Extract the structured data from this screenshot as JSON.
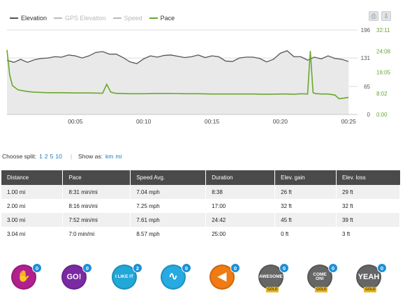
{
  "chart_data": {
    "type": "line",
    "x_label_ticks": [
      "00:05",
      "00:10",
      "00:15",
      "00:20",
      "00:25"
    ],
    "elevation_axis_ticks": [
      "196",
      "131",
      "65",
      "0"
    ],
    "pace_axis_ticks": [
      "32:11",
      "24:08",
      "16:05",
      "8:02",
      "0:00"
    ],
    "legend": [
      {
        "name": "Elevation",
        "state": "on",
        "color": "#555555"
      },
      {
        "name": "GPS Elevation",
        "state": "off",
        "color": "#b9b9b9"
      },
      {
        "name": "Speed",
        "state": "off",
        "color": "#b9b9b9"
      },
      {
        "name": "Pace",
        "state": "on",
        "color": "#6aa72e"
      }
    ],
    "series": [
      {
        "name": "Elevation",
        "color": "#555555",
        "unit": "ft",
        "x_min": [
          0,
          0.5,
          1,
          1.5,
          2,
          2.5,
          3,
          3.5,
          4,
          4.5,
          5,
          5.5,
          6,
          6.5,
          7,
          7.5,
          8,
          8.5,
          9,
          9.5,
          10,
          10.5,
          11,
          11.5,
          12,
          12.5,
          13,
          13.5,
          14,
          14.5,
          15,
          15.5,
          16,
          16.5,
          17,
          17.5,
          18,
          18.5,
          19,
          19.5,
          20,
          20.5,
          21,
          21.5,
          22,
          22.5,
          23,
          23.5,
          24,
          24.5,
          25
        ],
        "values": [
          126,
          121,
          128,
          121,
          127,
          130,
          131,
          134,
          133,
          138,
          136,
          131,
          136,
          144,
          146,
          140,
          140,
          132,
          122,
          118,
          129,
          136,
          133,
          137,
          138,
          135,
          132,
          134,
          138,
          132,
          136,
          134,
          124,
          123,
          131,
          133,
          133,
          130,
          122,
          128,
          142,
          148,
          134,
          134,
          126,
          133,
          129,
          136,
          130,
          128,
          123
        ]
      },
      {
        "name": "Pace",
        "color": "#6aa72e",
        "unit": "min/mi",
        "x_min": [
          0,
          0.2,
          0.4,
          0.8,
          1.2,
          1.6,
          2,
          3,
          4,
          5,
          6,
          7,
          7.3,
          7.6,
          7.9,
          8.3,
          9,
          10,
          11,
          12,
          13,
          14,
          15,
          16,
          17,
          18,
          19,
          20,
          20.5,
          21,
          21.5,
          22,
          22.2,
          22.4,
          22.6,
          22.8,
          23,
          23.5,
          24,
          24.3,
          24.6,
          25
        ],
        "values": [
          24.6,
          15,
          11,
          9.4,
          9,
          8.7,
          8.5,
          8.3,
          8.3,
          8.2,
          8.2,
          8.1,
          11.5,
          8.5,
          8.1,
          8.0,
          7.9,
          7.9,
          8.0,
          8.0,
          7.9,
          7.9,
          7.8,
          7.8,
          7.8,
          7.8,
          7.7,
          7.8,
          7.8,
          7.7,
          7.9,
          7.8,
          24.2,
          8.3,
          7.9,
          7.9,
          7.8,
          7.8,
          7.4,
          6.0,
          6.2,
          6.5
        ]
      }
    ],
    "ylim_elevation_ft": [
      0,
      196
    ],
    "ylim_pace_minutes": [
      0,
      32.18
    ],
    "xlim_minutes": [
      0,
      25.5
    ]
  },
  "controls": {
    "choose_split_label": "Choose split:",
    "split_options": [
      "1",
      "2",
      "5",
      "10"
    ],
    "show_as_label": "Show as:",
    "unit_options": [
      "km",
      "mi"
    ]
  },
  "table": {
    "headers": [
      "Distance",
      "Pace",
      "Speed Avg.",
      "Duration",
      "Elev. gain",
      "Elev. loss"
    ],
    "rows": [
      [
        "1.00 mi",
        "8:31 min/mi",
        "7.04 mph",
        "8:38",
        "26 ft",
        "29 ft"
      ],
      [
        "2.00 mi",
        "8:16 min/mi",
        "7.25 mph",
        "17:00",
        "32 ft",
        "32 ft"
      ],
      [
        "3.00 mi",
        "7:52 min/mi",
        "7.61 mph",
        "24:42",
        "45 ft",
        "39 ft"
      ],
      [
        "3.04 mi",
        "7:0 min/mi",
        "8.57 mph",
        "25:00",
        "0 ft",
        "3 ft"
      ]
    ]
  },
  "badges": [
    {
      "label": "",
      "icon": "clapping-hands-icon",
      "color": "#b1208f",
      "count": "0",
      "gold": ""
    },
    {
      "label": "GO!",
      "icon": "go-icon",
      "color": "#7c2aa3",
      "count": "0",
      "gold": ""
    },
    {
      "label": "I LIKE IT",
      "icon": "like-checkmark-icon",
      "color": "#21a7d8",
      "count": "2",
      "gold": ""
    },
    {
      "label": "",
      "icon": "wave-icon",
      "color": "#27a9e1",
      "count": "0",
      "gold": ""
    },
    {
      "label": "",
      "icon": "megaphone-icon",
      "color": "#f07a14",
      "count": "0",
      "gold": ""
    },
    {
      "label": "AWESOME",
      "icon": "awesome-icon",
      "color": "#666666",
      "count": "0",
      "gold": "GOLD"
    },
    {
      "label": "COME ON!",
      "icon": "come-on-icon",
      "color": "#666666",
      "count": "0",
      "gold": "GOLD"
    },
    {
      "label": "YEAH",
      "icon": "yeah-icon",
      "color": "#666666",
      "count": "0",
      "gold": "GOLD"
    }
  ]
}
